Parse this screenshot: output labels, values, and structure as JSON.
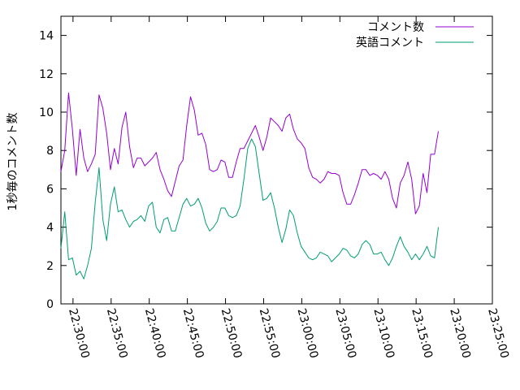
{
  "chart_data": {
    "type": "line",
    "title": "",
    "xlabel": "",
    "ylabel": "1秒毎のコメント数",
    "x_start": "22:28:25",
    "x_step_seconds": 30,
    "xlim": [
      "22:28:25",
      "23:25:00"
    ],
    "ylim": [
      0,
      15
    ],
    "x_ticks": [
      "22:30:00",
      "22:35:00",
      "22:40:00",
      "22:45:00",
      "22:50:00",
      "22:55:00",
      "23:00:00",
      "23:05:00",
      "23:10:00",
      "23:15:00",
      "23:20:00",
      "23:25:00"
    ],
    "y_ticks": [
      "0",
      "2",
      "4",
      "6",
      "8",
      "10",
      "12",
      "14"
    ],
    "grid": false,
    "legend_position": "top-right",
    "series": [
      {
        "name": "コメント数",
        "color": "#9400d3",
        "values": [
          6.9,
          8.0,
          11.0,
          9.1,
          6.7,
          9.1,
          7.6,
          6.9,
          7.3,
          7.8,
          10.9,
          10.2,
          8.9,
          7.0,
          8.1,
          7.3,
          9.2,
          10.0,
          8.2,
          7.1,
          7.6,
          7.6,
          7.2,
          7.4,
          7.6,
          7.9,
          7.0,
          6.5,
          5.9,
          5.6,
          6.4,
          7.2,
          7.5,
          9.3,
          10.8,
          10.1,
          8.8,
          8.9,
          8.3,
          7.0,
          6.9,
          7.0,
          7.5,
          7.4,
          6.6,
          6.6,
          7.4,
          8.1,
          8.1,
          8.5,
          8.9,
          9.3,
          8.7,
          8.0,
          8.7,
          9.7,
          9.5,
          9.3,
          9.0,
          9.7,
          9.9,
          9.1,
          8.6,
          8.4,
          8.1,
          7.1,
          6.6,
          6.5,
          6.3,
          6.5,
          6.9,
          6.8,
          6.8,
          6.7,
          5.8,
          5.2,
          5.2,
          5.7,
          6.3,
          7.0,
          7.0,
          6.7,
          6.8,
          6.7,
          6.5,
          6.9,
          6.5,
          5.5,
          5.0,
          6.3,
          6.7,
          7.4,
          6.5,
          4.7,
          5.1,
          6.8,
          5.8,
          7.8,
          7.8,
          9.0
        ]
      },
      {
        "name": "英語コメント",
        "color": "#009e73",
        "values": [
          2.9,
          4.8,
          2.3,
          2.4,
          1.5,
          1.7,
          1.3,
          2.0,
          2.9,
          5.3,
          7.1,
          4.4,
          3.3,
          5.2,
          6.1,
          4.8,
          4.9,
          4.4,
          4.0,
          4.3,
          4.4,
          4.6,
          4.3,
          5.1,
          5.3,
          4.0,
          3.7,
          4.4,
          4.5,
          3.8,
          3.8,
          4.5,
          5.2,
          5.5,
          5.1,
          5.2,
          5.5,
          5.0,
          4.2,
          3.8,
          4.0,
          4.3,
          5.0,
          5.0,
          4.6,
          4.5,
          4.6,
          5.1,
          6.5,
          8.1,
          8.6,
          8.2,
          6.8,
          5.4,
          5.5,
          5.8,
          5.0,
          4.0,
          3.2,
          3.9,
          4.9,
          4.6,
          3.7,
          3.0,
          2.7,
          2.4,
          2.3,
          2.4,
          2.7,
          2.6,
          2.5,
          2.2,
          2.4,
          2.6,
          2.9,
          2.8,
          2.5,
          2.4,
          2.6,
          3.1,
          3.3,
          3.1,
          2.6,
          2.6,
          2.7,
          2.3,
          2.0,
          2.4,
          3.0,
          3.5,
          3.0,
          2.7,
          2.3,
          2.6,
          2.3,
          2.6,
          3.0,
          2.5,
          2.4,
          4.0
        ]
      }
    ]
  }
}
